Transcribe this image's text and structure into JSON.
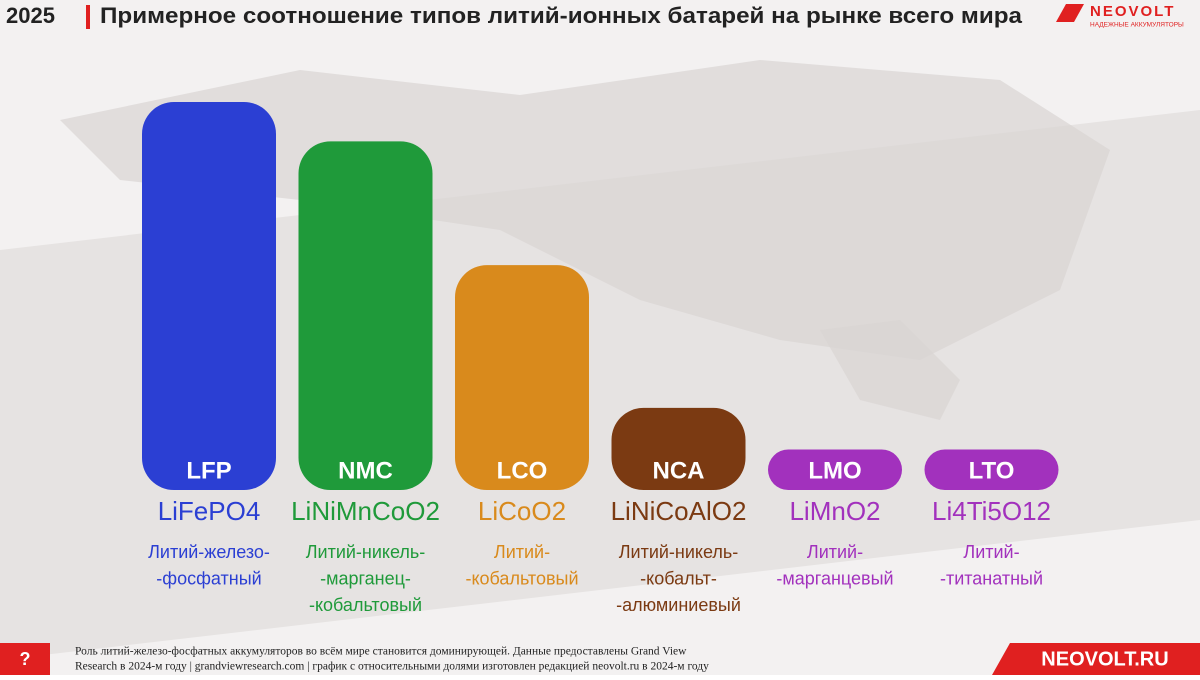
{
  "header": {
    "year": "2025",
    "brand": "NEOVOLT",
    "tagline": "НАДЕЖНЫЕ АККУМУЛЯТОРЫ"
  },
  "chart_data": {
    "type": "bar",
    "title": "Примерное соотношение типов литий-ионных батарей на рынке всего мира",
    "categories": [
      "LFP",
      "NMC",
      "LCO",
      "NCA",
      "LMO",
      "LTO"
    ],
    "formulas": [
      "LiFePO4",
      "LiNiMnCoO2",
      "LiCoO2",
      "LiNiCoAlO2",
      "LiMnO2",
      "Li4Ti5O12"
    ],
    "names": [
      [
        "Литий-железо-",
        "-фосфатный"
      ],
      [
        "Литий-никель-",
        "-марганец-",
        "-кобальтовый"
      ],
      [
        "Литий-",
        "-кобальтовый"
      ],
      [
        "Литий-никель-",
        "-кобальт-",
        "-алюминиевый"
      ],
      [
        "Литий-",
        "-марганцевый"
      ],
      [
        "Литий-",
        "-титанатный"
      ]
    ],
    "values": [
      34.5,
      31,
      20,
      7.3,
      3.6,
      3.6
    ],
    "colors": [
      "#2b3fd3",
      "#1f9a3a",
      "#d98a1c",
      "#7b3a12",
      "#a231bd",
      "#a231bd"
    ]
  },
  "footer": {
    "help": "?",
    "note": [
      "Роль литий-железо-фосфатных аккумуляторов во всём мире становится доминирующей. Данные предоставлены Grand View",
      "Research в 2024-м году | grandviewresearch.com | график с относительными долями изготовлен редакцией neovolt.ru в 2024-м году"
    ],
    "site": "NEOVOLT.RU"
  }
}
